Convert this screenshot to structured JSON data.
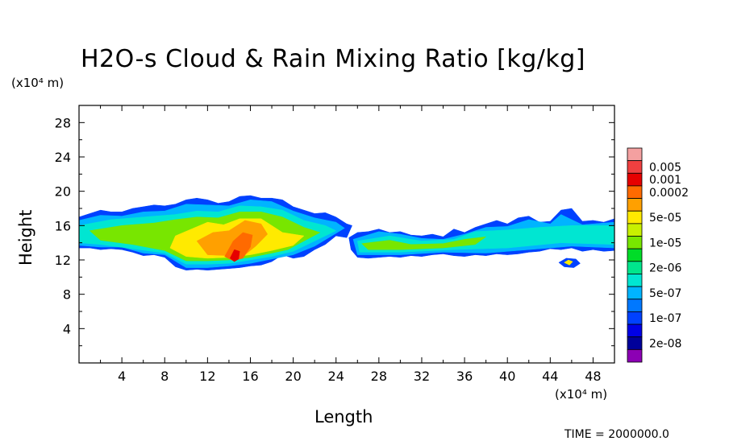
{
  "chart_data": {
    "type": "heatmap",
    "title": "H2O-s Cloud & Rain Mixing Ratio [kg/kg]",
    "xlabel": "Length",
    "ylabel": "Height",
    "x_unit": "(x10⁴ m)",
    "y_unit": "(x10⁴ m)",
    "xlim": [
      0,
      50
    ],
    "ylim": [
      0,
      30
    ],
    "x_ticks": [
      4,
      8,
      12,
      16,
      20,
      24,
      28,
      32,
      36,
      40,
      44,
      48
    ],
    "y_ticks": [
      4,
      8,
      12,
      16,
      20,
      24,
      28
    ],
    "legend_placement": "right",
    "colorbar": [
      {
        "label": "",
        "color": "#f4a0a0"
      },
      {
        "label": "0.005",
        "color": "#f04040"
      },
      {
        "label": "0.001",
        "color": "#e60000"
      },
      {
        "label": "0.0002",
        "color": "#ff6a00"
      },
      {
        "label": "",
        "color": "#ffa000"
      },
      {
        "label": "5e-05",
        "color": "#ffea00"
      },
      {
        "label": "",
        "color": "#c8f000"
      },
      {
        "label": "1e-05",
        "color": "#78e600"
      },
      {
        "label": "",
        "color": "#00dc28"
      },
      {
        "label": "2e-06",
        "color": "#00e68c"
      },
      {
        "label": "",
        "color": "#00e6d2"
      },
      {
        "label": "5e-07",
        "color": "#00b4ff"
      },
      {
        "label": "",
        "color": "#0078ff"
      },
      {
        "label": "1e-07",
        "color": "#0041ff"
      },
      {
        "label": "",
        "color": "#0000e6"
      },
      {
        "label": "2e-08",
        "color": "#00009a"
      },
      {
        "label": "",
        "color": "#8c00b4"
      }
    ],
    "regions": [
      {
        "color": "#0041ff",
        "points": [
          [
            0,
            17
          ],
          [
            1,
            17.4
          ],
          [
            2,
            17.8
          ],
          [
            3,
            17.6
          ],
          [
            4,
            17.6
          ],
          [
            5,
            18
          ],
          [
            6,
            18.2
          ],
          [
            7,
            18.4
          ],
          [
            8,
            18.3
          ],
          [
            9,
            18.5
          ],
          [
            10,
            19
          ],
          [
            11,
            19.2
          ],
          [
            12,
            19
          ],
          [
            13,
            18.6
          ],
          [
            14,
            18.8
          ],
          [
            15,
            19.4
          ],
          [
            16,
            19.5
          ],
          [
            17,
            19.2
          ],
          [
            18,
            19.2
          ],
          [
            19,
            19
          ],
          [
            20,
            18.2
          ],
          [
            21,
            17.8
          ],
          [
            22,
            17.4
          ],
          [
            23,
            17.5
          ],
          [
            24,
            17
          ],
          [
            25,
            16.2
          ],
          [
            25.5,
            16
          ],
          [
            25,
            14.6
          ],
          [
            24,
            14.8
          ],
          [
            23,
            13.8
          ],
          [
            22,
            13.2
          ],
          [
            21,
            12.4
          ],
          [
            20,
            12.2
          ],
          [
            19,
            12.6
          ],
          [
            18,
            11.8
          ],
          [
            17,
            11.4
          ],
          [
            16,
            11.3
          ],
          [
            15,
            11.1
          ],
          [
            14,
            11
          ],
          [
            13,
            10.9
          ],
          [
            12,
            10.8
          ],
          [
            11,
            10.9
          ],
          [
            10,
            10.8
          ],
          [
            9,
            11.2
          ],
          [
            8,
            12.3
          ],
          [
            7,
            12.6
          ],
          [
            6,
            12.5
          ],
          [
            5,
            12.9
          ],
          [
            4,
            13.2
          ],
          [
            3,
            13.3
          ],
          [
            2,
            13.2
          ],
          [
            1,
            13.4
          ],
          [
            0,
            13.4
          ]
        ]
      },
      {
        "color": "#0041ff",
        "points": [
          [
            25.2,
            14.6
          ],
          [
            26,
            15.2
          ],
          [
            27,
            15.3
          ],
          [
            28,
            15.6
          ],
          [
            29,
            15.2
          ],
          [
            30,
            15.3
          ],
          [
            31,
            14.9
          ],
          [
            32,
            14.8
          ],
          [
            33,
            15
          ],
          [
            34,
            14.7
          ],
          [
            35,
            15.6
          ],
          [
            36,
            15.2
          ],
          [
            37,
            15.8
          ],
          [
            38,
            16.2
          ],
          [
            39,
            16.6
          ],
          [
            40,
            16.2
          ],
          [
            41,
            16.9
          ],
          [
            42,
            17.1
          ],
          [
            43,
            16.4
          ],
          [
            44,
            16.5
          ],
          [
            45,
            17.8
          ],
          [
            46,
            18
          ],
          [
            47,
            16.5
          ],
          [
            48,
            16.6
          ],
          [
            49,
            16.4
          ],
          [
            50,
            16.8
          ],
          [
            50,
            13.1
          ],
          [
            49,
            13
          ],
          [
            48,
            13.2
          ],
          [
            47,
            13
          ],
          [
            46,
            13.4
          ],
          [
            45,
            13.2
          ],
          [
            44,
            13.3
          ],
          [
            43,
            13
          ],
          [
            42,
            12.9
          ],
          [
            41,
            12.7
          ],
          [
            40,
            12.6
          ],
          [
            39,
            12.7
          ],
          [
            38,
            12.5
          ],
          [
            37,
            12.6
          ],
          [
            36,
            12.4
          ],
          [
            35,
            12.5
          ],
          [
            34,
            12.7
          ],
          [
            33,
            12.6
          ],
          [
            32,
            12.4
          ],
          [
            31,
            12.5
          ],
          [
            30,
            12.3
          ],
          [
            29,
            12.4
          ],
          [
            28,
            12.3
          ],
          [
            27,
            12.2
          ],
          [
            26,
            12.3
          ],
          [
            25.4,
            13.2
          ]
        ]
      },
      {
        "color": "#00b4ff",
        "points": [
          [
            0,
            16.6
          ],
          [
            2,
            17.2
          ],
          [
            4,
            17.1
          ],
          [
            6,
            17.6
          ],
          [
            8,
            17.7
          ],
          [
            10,
            18.5
          ],
          [
            12,
            18.4
          ],
          [
            14,
            18.3
          ],
          [
            16,
            19
          ],
          [
            18,
            18.8
          ],
          [
            20,
            17.7
          ],
          [
            22,
            16.9
          ],
          [
            24,
            16.4
          ],
          [
            24.8,
            15.7
          ],
          [
            24,
            15.1
          ],
          [
            22,
            13.6
          ],
          [
            20,
            12.6
          ],
          [
            18,
            12.1
          ],
          [
            16,
            11.6
          ],
          [
            14,
            11.3
          ],
          [
            12,
            11.1
          ],
          [
            10,
            11.1
          ],
          [
            8,
            12.6
          ],
          [
            6,
            12.8
          ],
          [
            4,
            13.5
          ],
          [
            2,
            13.5
          ],
          [
            0,
            13.7
          ]
        ]
      },
      {
        "color": "#00b4ff",
        "points": [
          [
            25.6,
            14.4
          ],
          [
            28,
            15.3
          ],
          [
            30,
            15
          ],
          [
            32,
            14.5
          ],
          [
            34,
            14.4
          ],
          [
            36,
            15
          ],
          [
            38,
            15.8
          ],
          [
            40,
            15.9
          ],
          [
            42,
            16.7
          ],
          [
            44,
            16.2
          ],
          [
            45,
            17.3
          ],
          [
            47,
            16.1
          ],
          [
            50,
            16.4
          ],
          [
            50,
            13.4
          ],
          [
            46,
            13.6
          ],
          [
            42,
            13.2
          ],
          [
            38,
            12.8
          ],
          [
            34,
            12.9
          ],
          [
            30,
            12.6
          ],
          [
            26,
            12.6
          ]
        ]
      },
      {
        "color": "#00e6d2",
        "points": [
          [
            0,
            16
          ],
          [
            3,
            16.7
          ],
          [
            6,
            17
          ],
          [
            9,
            17.3
          ],
          [
            11,
            17.7
          ],
          [
            13,
            17.6
          ],
          [
            15,
            18.3
          ],
          [
            17,
            18.2
          ],
          [
            19,
            17.8
          ],
          [
            21,
            16.6
          ],
          [
            23,
            16
          ],
          [
            24,
            15.4
          ],
          [
            22,
            14.2
          ],
          [
            20,
            13
          ],
          [
            18,
            12.4
          ],
          [
            16,
            12
          ],
          [
            14,
            11.6
          ],
          [
            12,
            11.5
          ],
          [
            10,
            11.5
          ],
          [
            8,
            12.8
          ],
          [
            5,
            13.3
          ],
          [
            2,
            13.8
          ],
          [
            0,
            14
          ]
        ]
      },
      {
        "color": "#00e6d2",
        "points": [
          [
            26,
            14.2
          ],
          [
            29,
            14.8
          ],
          [
            32,
            14.2
          ],
          [
            35,
            14.4
          ],
          [
            37,
            15.3
          ],
          [
            40,
            15.5
          ],
          [
            43,
            15.8
          ],
          [
            46,
            16
          ],
          [
            50,
            16
          ],
          [
            50,
            13.8
          ],
          [
            45,
            14
          ],
          [
            40,
            13.4
          ],
          [
            35,
            13.2
          ],
          [
            30,
            12.9
          ],
          [
            26.2,
            12.9
          ]
        ]
      },
      {
        "color": "#78e600",
        "points": [
          [
            1,
            15.4
          ],
          [
            4,
            16
          ],
          [
            7,
            16.3
          ],
          [
            9,
            16.7
          ],
          [
            11,
            17
          ],
          [
            13,
            16.9
          ],
          [
            15,
            17.6
          ],
          [
            17,
            17.6
          ],
          [
            19,
            17
          ],
          [
            21,
            15.8
          ],
          [
            22.5,
            15.2
          ],
          [
            21,
            14.2
          ],
          [
            19.5,
            13.2
          ],
          [
            18,
            12.8
          ],
          [
            16,
            12.3
          ],
          [
            14,
            12
          ],
          [
            12,
            11.9
          ],
          [
            10,
            11.9
          ],
          [
            8,
            13.1
          ],
          [
            5,
            13.8
          ],
          [
            2,
            14.3
          ]
        ]
      },
      {
        "color": "#78e600",
        "points": [
          [
            26.4,
            13.9
          ],
          [
            29,
            14.3
          ],
          [
            31,
            13.8
          ],
          [
            34,
            13.9
          ],
          [
            36,
            14.4
          ],
          [
            38,
            14.7
          ],
          [
            37,
            13.8
          ],
          [
            34,
            13.4
          ],
          [
            30,
            13.2
          ],
          [
            27,
            13.2
          ]
        ]
      },
      {
        "color": "#ffea00",
        "points": [
          [
            9,
            14.8
          ],
          [
            10.5,
            15.6
          ],
          [
            12,
            16.4
          ],
          [
            13.5,
            16.1
          ],
          [
            15,
            16.8
          ],
          [
            17,
            16.8
          ],
          [
            18,
            16
          ],
          [
            19,
            15.2
          ],
          [
            21,
            14.8
          ],
          [
            20,
            13.7
          ],
          [
            18,
            13.1
          ],
          [
            16,
            12.6
          ],
          [
            14,
            12.3
          ],
          [
            12,
            12.2
          ],
          [
            10,
            12.4
          ],
          [
            8.5,
            13.4
          ]
        ]
      },
      {
        "color": "#ffa000",
        "points": [
          [
            11,
            14.2
          ],
          [
            12.5,
            15.2
          ],
          [
            14,
            15.4
          ],
          [
            15.5,
            16.6
          ],
          [
            17,
            16.2
          ],
          [
            17.6,
            15
          ],
          [
            16.5,
            13.6
          ],
          [
            15.5,
            12.6
          ],
          [
            14,
            12.5
          ],
          [
            12,
            12.6
          ]
        ]
      },
      {
        "color": "#ff6a00",
        "points": [
          [
            13.6,
            12.4
          ],
          [
            14.4,
            14.2
          ],
          [
            15.3,
            15.2
          ],
          [
            16.2,
            14.9
          ],
          [
            16,
            13.5
          ],
          [
            15.3,
            12.2
          ],
          [
            14.4,
            11.9
          ]
        ]
      },
      {
        "color": "#e60000",
        "points": [
          [
            14.1,
            12.2
          ],
          [
            14.5,
            13.2
          ],
          [
            15,
            13
          ],
          [
            14.9,
            12.1
          ],
          [
            14.5,
            11.8
          ]
        ]
      },
      {
        "color": "#0041ff",
        "points": [
          [
            44.8,
            11.7
          ],
          [
            45.5,
            12.2
          ],
          [
            46.4,
            12.1
          ],
          [
            46.8,
            11.6
          ],
          [
            46.2,
            11.1
          ],
          [
            45.3,
            11.2
          ]
        ]
      },
      {
        "color": "#ffea00",
        "points": [
          [
            45.3,
            11.7
          ],
          [
            45.7,
            12
          ],
          [
            46.1,
            11.8
          ],
          [
            45.8,
            11.4
          ]
        ]
      }
    ]
  },
  "time_label": "TIME =  2000000.0"
}
